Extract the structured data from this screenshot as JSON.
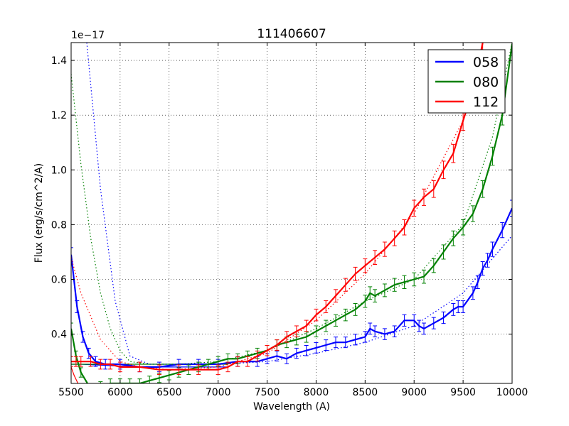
{
  "chart_data": {
    "type": "line",
    "title": "111406607",
    "xlabel": "Wavelength (A)",
    "ylabel": "Flux (erg/s/cm^2/A)",
    "offset_label": "1e−17",
    "xlim": [
      5500,
      10000
    ],
    "ylim": [
      0.22,
      1.465
    ],
    "xticks": [
      5500,
      6000,
      6500,
      7000,
      7500,
      8000,
      8500,
      9000,
      9500,
      10000
    ],
    "xtick_labels": [
      "5500",
      "6000",
      "6500",
      "7000",
      "7500",
      "8000",
      "8500",
      "9000",
      "9500",
      "10000"
    ],
    "yticks": [
      0.4,
      0.6,
      0.8,
      1.0,
      1.2,
      1.4
    ],
    "ytick_labels": [
      "0.4",
      "0.6",
      "0.8",
      "1.0",
      "1.2",
      "1.4"
    ],
    "grid": true,
    "legend_position": "top-right",
    "series": [
      {
        "name": "058",
        "color": "#0000ff",
        "x": [
          5500,
          5560,
          5620,
          5680,
          5750,
          5850,
          6000,
          6200,
          6400,
          6600,
          6800,
          7000,
          7200,
          7400,
          7500,
          7600,
          7700,
          7800,
          7900,
          8000,
          8100,
          8200,
          8300,
          8400,
          8500,
          8550,
          8600,
          8700,
          8800,
          8900,
          9000,
          9050,
          9100,
          9200,
          9300,
          9400,
          9450,
          9500,
          9600,
          9650,
          9700,
          9750,
          9800,
          9900,
          10000
        ],
        "values": [
          0.69,
          0.5,
          0.39,
          0.33,
          0.3,
          0.29,
          0.29,
          0.28,
          0.28,
          0.29,
          0.29,
          0.29,
          0.3,
          0.3,
          0.31,
          0.32,
          0.31,
          0.33,
          0.34,
          0.35,
          0.36,
          0.37,
          0.37,
          0.38,
          0.39,
          0.42,
          0.41,
          0.4,
          0.41,
          0.45,
          0.45,
          0.43,
          0.42,
          0.44,
          0.46,
          0.49,
          0.5,
          0.5,
          0.55,
          0.59,
          0.64,
          0.67,
          0.71,
          0.78,
          0.86
        ],
        "model_x": [
          5660,
          5800,
          5950,
          6100,
          6300,
          6600,
          7000,
          7500,
          8000,
          8500,
          9000,
          9500,
          10000
        ],
        "model_values": [
          1.465,
          0.93,
          0.52,
          0.32,
          0.29,
          0.29,
          0.29,
          0.3,
          0.33,
          0.37,
          0.43,
          0.55,
          0.76
        ]
      },
      {
        "name": "080",
        "color": "#008000",
        "x": [
          5500,
          5550,
          5600,
          5700,
          5800,
          5900,
          6000,
          6100,
          6200,
          6300,
          6400,
          6500,
          6600,
          6700,
          6800,
          6900,
          7000,
          7100,
          7200,
          7300,
          7400,
          7500,
          7600,
          7700,
          7800,
          7900,
          8000,
          8100,
          8200,
          8300,
          8400,
          8500,
          8550,
          8600,
          8700,
          8800,
          8900,
          9000,
          9100,
          9200,
          9300,
          9400,
          9500,
          9600,
          9700,
          9800,
          9900,
          10000
        ],
        "values": [
          0.42,
          0.32,
          0.26,
          0.2,
          0.21,
          0.22,
          0.22,
          0.22,
          0.22,
          0.23,
          0.24,
          0.25,
          0.26,
          0.27,
          0.28,
          0.29,
          0.3,
          0.31,
          0.31,
          0.32,
          0.33,
          0.34,
          0.36,
          0.37,
          0.38,
          0.39,
          0.41,
          0.43,
          0.45,
          0.47,
          0.49,
          0.52,
          0.55,
          0.54,
          0.56,
          0.58,
          0.59,
          0.6,
          0.61,
          0.65,
          0.7,
          0.75,
          0.79,
          0.84,
          0.93,
          1.05,
          1.2,
          1.46
        ],
        "model_x": [
          5500,
          5600,
          5700,
          5800,
          5900,
          6000,
          6100,
          6300,
          6600,
          7000,
          7500,
          8000,
          8500,
          9000,
          9500,
          9800,
          10000
        ],
        "model_values": [
          1.35,
          1.02,
          0.75,
          0.55,
          0.42,
          0.34,
          0.3,
          0.29,
          0.29,
          0.3,
          0.34,
          0.42,
          0.52,
          0.6,
          0.8,
          1.12,
          1.465
        ]
      },
      {
        "name": "112",
        "color": "#ff0000",
        "x": [
          5500,
          5550,
          5600,
          5700,
          5800,
          5900,
          6000,
          6200,
          6400,
          6600,
          6800,
          7000,
          7100,
          7200,
          7300,
          7400,
          7500,
          7600,
          7700,
          7800,
          7900,
          8000,
          8100,
          8200,
          8300,
          8400,
          8500,
          8600,
          8700,
          8800,
          8900,
          9000,
          9100,
          9200,
          9300,
          9400,
          9500,
          9600,
          9700
        ],
        "values": [
          0.3,
          0.3,
          0.3,
          0.3,
          0.29,
          0.29,
          0.28,
          0.28,
          0.27,
          0.27,
          0.27,
          0.27,
          0.28,
          0.3,
          0.3,
          0.32,
          0.34,
          0.36,
          0.39,
          0.41,
          0.43,
          0.47,
          0.5,
          0.54,
          0.58,
          0.62,
          0.65,
          0.68,
          0.71,
          0.75,
          0.79,
          0.86,
          0.9,
          0.93,
          1.0,
          1.06,
          1.18,
          1.29,
          1.465
        ],
        "model_x": [
          5500,
          5600,
          5800,
          6000,
          6200,
          6500,
          7000,
          7500,
          8000,
          8500,
          9000,
          9500,
          9700
        ],
        "model_values": [
          0.68,
          0.55,
          0.38,
          0.3,
          0.28,
          0.27,
          0.28,
          0.33,
          0.45,
          0.62,
          0.84,
          1.18,
          1.38
        ]
      }
    ],
    "extra_lines": [
      {
        "series": "058",
        "x": [
          5500,
          5600,
          6200,
          7100
        ],
        "values": [
          0.29,
          0.29,
          0.28,
          0.28
        ]
      },
      {
        "series": "080",
        "x": [
          5500,
          7100
        ],
        "values": [
          0.29,
          0.29
        ]
      },
      {
        "series": "112",
        "x": [
          5500,
          5530,
          5570,
          5600
        ],
        "values": [
          0.28,
          0.25,
          0.22,
          0.2
        ]
      }
    ]
  }
}
